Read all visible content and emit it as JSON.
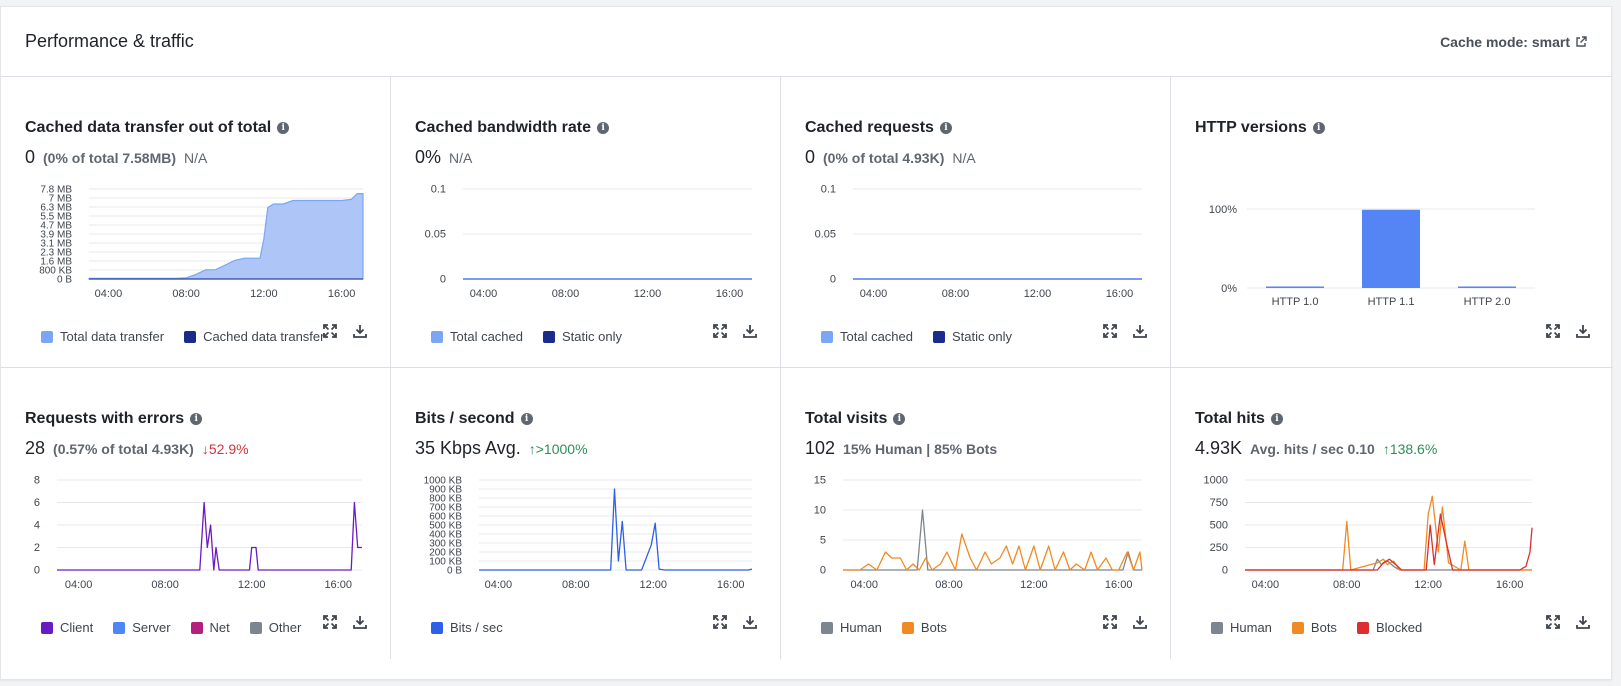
{
  "header": {
    "title": "Performance & traffic",
    "cache_mode_label": "Cache mode: smart"
  },
  "colors": {
    "light_blue": "#7ba6f5",
    "navy": "#1a2b8c",
    "blue": "#2e5fe8",
    "purple": "#6a1cc2",
    "magenta": "#b3207f",
    "gray": "#7d8590",
    "orange": "#f08a24",
    "red": "#dc2f2f",
    "bar": "#5585f5"
  },
  "panels": [
    {
      "title": "Cached data transfer out of total",
      "value": "0",
      "sub": "(0% of total 7.58MB)",
      "note": "N/A",
      "legend": [
        {
          "label": "Total data transfer",
          "color": "#7ba6f5"
        },
        {
          "label": "Cached data transfer",
          "color": "#1a2b8c"
        }
      ]
    },
    {
      "title": "Cached bandwidth rate",
      "value": "0%",
      "note": "N/A",
      "legend": [
        {
          "label": "Total cached",
          "color": "#7ba6f5"
        },
        {
          "label": "Static only",
          "color": "#1a2b8c"
        }
      ]
    },
    {
      "title": "Cached requests",
      "value": "0",
      "sub": "(0% of total 4.93K)",
      "note": "N/A",
      "legend": [
        {
          "label": "Total cached",
          "color": "#7ba6f5"
        },
        {
          "label": "Static only",
          "color": "#1a2b8c"
        }
      ]
    },
    {
      "title": "HTTP versions",
      "legend": []
    },
    {
      "title": "Requests with errors",
      "value": "28",
      "sub": "(0.57% of total 4.93K)",
      "change": "↓52.9%",
      "legend": [
        {
          "label": "Client",
          "color": "#6a1cc2"
        },
        {
          "label": "Server",
          "color": "#4f86f7"
        },
        {
          "label": "Net",
          "color": "#b3207f"
        },
        {
          "label": "Other",
          "color": "#7d8590"
        }
      ]
    },
    {
      "title": "Bits / second",
      "value": "35 Kbps Avg.",
      "change": "↑>1000%",
      "legend": [
        {
          "label": "Bits / sec",
          "color": "#2e5fe8"
        }
      ]
    },
    {
      "title": "Total visits",
      "value": "102",
      "sub": "15% Human | 85% Bots",
      "legend": [
        {
          "label": "Human",
          "color": "#7d8590"
        },
        {
          "label": "Bots",
          "color": "#f08a24"
        }
      ]
    },
    {
      "title": "Total hits",
      "value": "4.93K",
      "sub": "Avg. hits / sec 0.10",
      "change": "↑138.6%",
      "legend": [
        {
          "label": "Human",
          "color": "#7d8590"
        },
        {
          "label": "Bots",
          "color": "#f08a24"
        },
        {
          "label": "Blocked",
          "color": "#dc2f2f"
        }
      ]
    }
  ],
  "chart_data": [
    {
      "type": "area",
      "x_ticks": [
        "04:00",
        "08:00",
        "12:00",
        "16:00"
      ],
      "y_ticks": [
        "7.8 MB",
        "7 MB",
        "6.3 MB",
        "5.5 MB",
        "4.7 MB",
        "3.9 MB",
        "3.1 MB",
        "2.3 MB",
        "1.6 MB",
        "800 KB",
        "0 B"
      ],
      "ylim": [
        0,
        7.8
      ],
      "xlim": [
        3,
        17.1
      ],
      "series": [
        {
          "name": "Total data transfer",
          "color": "#7ba6f5",
          "x": [
            3,
            7.5,
            8.0,
            8.5,
            9.0,
            9.5,
            10.0,
            10.5,
            11.0,
            11.8,
            12.0,
            12.2,
            12.5,
            13.0,
            13.5,
            14.0,
            15.0,
            16.0,
            16.5,
            16.8,
            17.1
          ],
          "y": [
            0.05,
            0.05,
            0.1,
            0.4,
            0.8,
            0.8,
            1.2,
            1.6,
            1.8,
            1.8,
            3.5,
            6.2,
            6.5,
            6.5,
            6.8,
            6.8,
            6.8,
            6.8,
            6.9,
            7.4,
            7.4
          ]
        }
      ]
    },
    {
      "type": "line",
      "x_ticks": [
        "04:00",
        "08:00",
        "12:00",
        "16:00"
      ],
      "y_ticks": [
        "0.1",
        "0.05",
        "0"
      ],
      "ylim": [
        0,
        0.1
      ],
      "xlim": [
        3,
        17.1
      ],
      "series": [
        {
          "name": "Total cached",
          "color": "#2e5fe8",
          "x": [
            3,
            17.1
          ],
          "y": [
            0,
            0
          ]
        }
      ]
    },
    {
      "type": "line",
      "x_ticks": [
        "04:00",
        "08:00",
        "12:00",
        "16:00"
      ],
      "y_ticks": [
        "0.1",
        "0.05",
        "0"
      ],
      "ylim": [
        0,
        0.1
      ],
      "xlim": [
        3,
        17.1
      ],
      "series": [
        {
          "name": "Total cached",
          "color": "#2e5fe8",
          "x": [
            3,
            17.1
          ],
          "y": [
            0,
            0
          ]
        }
      ]
    },
    {
      "type": "bar",
      "categories": [
        "HTTP 1.0",
        "HTTP 1.1",
        "HTTP 2.0"
      ],
      "values": [
        1,
        99,
        1
      ],
      "y_ticks": [
        "100%",
        "0%"
      ],
      "ylim": [
        0,
        100
      ]
    },
    {
      "type": "line",
      "x_ticks": [
        "04:00",
        "08:00",
        "12:00",
        "16:00"
      ],
      "y_ticks": [
        "8",
        "6",
        "4",
        "2",
        "0"
      ],
      "ylim": [
        0,
        8
      ],
      "xlim": [
        3,
        17.1
      ],
      "series": [
        {
          "name": "Client",
          "color": "#6a1cc2",
          "x": [
            3,
            9.6,
            9.8,
            9.95,
            10.1,
            10.25,
            10.35,
            10.5,
            10.6,
            11.9,
            12.0,
            12.2,
            12.3,
            16.6,
            16.75,
            16.9,
            17.1
          ],
          "y": [
            0,
            0,
            6,
            2,
            4,
            0,
            2,
            0,
            0,
            0,
            2,
            2,
            0,
            0,
            6,
            2,
            2
          ]
        }
      ]
    },
    {
      "type": "line",
      "x_ticks": [
        "04:00",
        "08:00",
        "12:00",
        "16:00"
      ],
      "y_ticks": [
        "1000 KB",
        "900 KB",
        "800 KB",
        "700 KB",
        "600 KB",
        "500 KB",
        "400 KB",
        "300 KB",
        "200 KB",
        "100 KB",
        "0 B"
      ],
      "ylim": [
        0,
        1000
      ],
      "xlim": [
        3,
        17.1
      ],
      "series": [
        {
          "name": "Bits / sec",
          "color": "#2e5fe8",
          "x": [
            3,
            9.8,
            10.0,
            10.2,
            10.4,
            10.6,
            11.4,
            11.9,
            12.1,
            12.3,
            12.6,
            16.9,
            17.1
          ],
          "y": [
            0,
            0,
            900,
            100,
            540,
            0,
            0,
            280,
            520,
            10,
            0,
            0,
            10
          ]
        }
      ]
    },
    {
      "type": "line",
      "x_ticks": [
        "04:00",
        "08:00",
        "12:00",
        "16:00"
      ],
      "y_ticks": [
        "15",
        "10",
        "5",
        "0"
      ],
      "ylim": [
        0,
        15
      ],
      "xlim": [
        3,
        17.1
      ],
      "series": [
        {
          "name": "Human",
          "color": "#7d8590",
          "x": [
            3,
            6.5,
            6.75,
            7.0,
            16.2,
            16.45,
            16.7,
            17.1
          ],
          "y": [
            0,
            0,
            10,
            0,
            0,
            3,
            0,
            0
          ]
        },
        {
          "name": "Bots",
          "color": "#f08a24",
          "x": [
            3,
            3.8,
            4.2,
            4.6,
            5.0,
            5.3,
            5.7,
            6.0,
            6.3,
            6.6,
            6.9,
            7.2,
            7.6,
            7.9,
            8.3,
            8.6,
            9.0,
            9.3,
            9.7,
            10.0,
            10.4,
            10.7,
            11.0,
            11.3,
            11.6,
            12.0,
            12.3,
            12.7,
            13.0,
            13.4,
            13.7,
            14.0,
            14.4,
            14.7,
            15.0,
            15.4,
            15.7,
            16.0,
            16.4,
            16.7,
            17.0,
            17.1
          ],
          "y": [
            0,
            0,
            1,
            0,
            3,
            2,
            2,
            0,
            1,
            0,
            2,
            0,
            1,
            3,
            0,
            6,
            2,
            0,
            3,
            1,
            2,
            4,
            1,
            4,
            0,
            4,
            0,
            4,
            0,
            3,
            0,
            1,
            0,
            3,
            0,
            2,
            0,
            0,
            3,
            0,
            3,
            0
          ]
        }
      ]
    },
    {
      "type": "line",
      "x_ticks": [
        "04:00",
        "08:00",
        "12:00",
        "16:00"
      ],
      "y_ticks": [
        "1000",
        "750",
        "500",
        "250",
        "0"
      ],
      "ylim": [
        0,
        1000
      ],
      "xlim": [
        3,
        17.1
      ],
      "series": [
        {
          "name": "Human",
          "color": "#7d8590",
          "x": [
            3,
            9.3,
            9.5,
            9.7,
            10.0,
            10.3,
            10.6,
            17.1
          ],
          "y": [
            0,
            0,
            120,
            60,
            100,
            40,
            0,
            0
          ]
        },
        {
          "name": "Bots",
          "color": "#f08a24",
          "x": [
            3,
            7.8,
            8.0,
            8.2,
            9.5,
            9.8,
            10.0,
            10.3,
            10.6,
            11.8,
            12.0,
            12.2,
            12.5,
            12.7,
            13.0,
            13.6,
            13.8,
            14.0,
            17.1
          ],
          "y": [
            0,
            0,
            540,
            0,
            80,
            120,
            60,
            100,
            0,
            0,
            620,
            820,
            200,
            700,
            80,
            0,
            320,
            0,
            0
          ]
        },
        {
          "name": "Blocked",
          "color": "#dc2f2f",
          "x": [
            3,
            9.5,
            9.8,
            10.1,
            10.4,
            10.7,
            11.9,
            12.1,
            12.3,
            12.6,
            12.9,
            13.2,
            16.5,
            16.8,
            17.0,
            17.1
          ],
          "y": [
            0,
            0,
            80,
            120,
            60,
            0,
            0,
            500,
            60,
            620,
            300,
            0,
            0,
            40,
            200,
            470
          ]
        }
      ]
    }
  ]
}
